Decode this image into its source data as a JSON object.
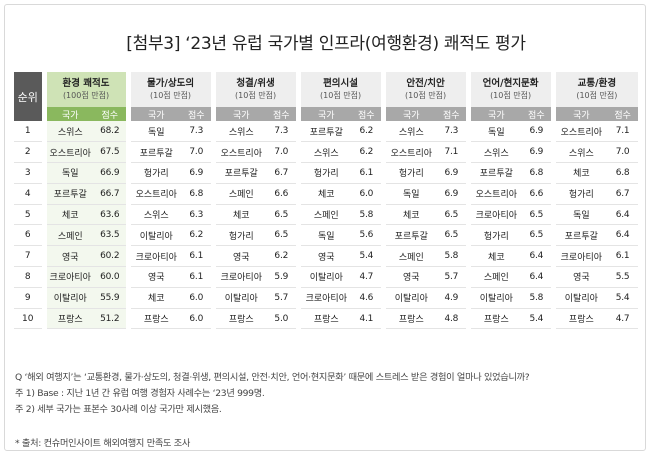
{
  "title": "[첨부3] ‘23년 유럽 국가별 인프라(여행환경) 쾌적도 평가",
  "table": {
    "rank_header": "순위",
    "country_label": "국가",
    "score_label": "점수",
    "categories": [
      {
        "name": "환경 쾌적도",
        "sub": "(100점 만점)"
      },
      {
        "name": "물가/상도의",
        "sub": "(10점 만점)"
      },
      {
        "name": "청결/위생",
        "sub": "(10점 만점)"
      },
      {
        "name": "편의시설",
        "sub": "(10점 만점)"
      },
      {
        "name": "안전/치안",
        "sub": "(10점 만점)"
      },
      {
        "name": "언어/현지문화",
        "sub": "(10점 만점)"
      },
      {
        "name": "교통/환경",
        "sub": "(10점 만점)"
      }
    ],
    "rows": [
      {
        "rank": "1",
        "cells": [
          [
            "스위스",
            "68.2"
          ],
          [
            "독일",
            "7.3"
          ],
          [
            "스위스",
            "7.3"
          ],
          [
            "포르투갈",
            "6.2"
          ],
          [
            "스위스",
            "7.3"
          ],
          [
            "독일",
            "6.9"
          ],
          [
            "오스트리아",
            "7.1"
          ]
        ]
      },
      {
        "rank": "2",
        "cells": [
          [
            "오스트리아",
            "67.5"
          ],
          [
            "포르투갈",
            "7.0"
          ],
          [
            "오스트리아",
            "7.0"
          ],
          [
            "스위스",
            "6.2"
          ],
          [
            "오스트리아",
            "7.1"
          ],
          [
            "스위스",
            "6.9"
          ],
          [
            "스위스",
            "7.0"
          ]
        ]
      },
      {
        "rank": "3",
        "cells": [
          [
            "독일",
            "66.9"
          ],
          [
            "헝가리",
            "6.9"
          ],
          [
            "포르투갈",
            "6.7"
          ],
          [
            "헝가리",
            "6.1"
          ],
          [
            "헝가리",
            "6.9"
          ],
          [
            "포르투갈",
            "6.8"
          ],
          [
            "체코",
            "6.8"
          ]
        ]
      },
      {
        "rank": "4",
        "cells": [
          [
            "포르투갈",
            "66.7"
          ],
          [
            "오스트리아",
            "6.8"
          ],
          [
            "스페인",
            "6.6"
          ],
          [
            "체코",
            "6.0"
          ],
          [
            "독일",
            "6.9"
          ],
          [
            "오스트리아",
            "6.6"
          ],
          [
            "헝가리",
            "6.7"
          ]
        ]
      },
      {
        "rank": "5",
        "cells": [
          [
            "체코",
            "63.6"
          ],
          [
            "스위스",
            "6.3"
          ],
          [
            "체코",
            "6.5"
          ],
          [
            "스페인",
            "5.8"
          ],
          [
            "체코",
            "6.5"
          ],
          [
            "크로아티아",
            "6.5"
          ],
          [
            "독일",
            "6.4"
          ]
        ]
      },
      {
        "rank": "6",
        "cells": [
          [
            "스페인",
            "63.5"
          ],
          [
            "이탈리아",
            "6.2"
          ],
          [
            "헝가리",
            "6.5"
          ],
          [
            "독일",
            "5.6"
          ],
          [
            "포르투갈",
            "6.5"
          ],
          [
            "헝가리",
            "6.5"
          ],
          [
            "포르투갈",
            "6.4"
          ]
        ]
      },
      {
        "rank": "7",
        "cells": [
          [
            "영국",
            "60.2"
          ],
          [
            "크로아티아",
            "6.1"
          ],
          [
            "영국",
            "6.2"
          ],
          [
            "영국",
            "5.4"
          ],
          [
            "스페인",
            "5.8"
          ],
          [
            "체코",
            "6.4"
          ],
          [
            "크로아티아",
            "6.1"
          ]
        ]
      },
      {
        "rank": "8",
        "cells": [
          [
            "크로아티아",
            "60.0"
          ],
          [
            "영국",
            "6.1"
          ],
          [
            "크로아티아",
            "5.9"
          ],
          [
            "이탈리아",
            "4.7"
          ],
          [
            "영국",
            "5.7"
          ],
          [
            "스페인",
            "6.4"
          ],
          [
            "영국",
            "5.5"
          ]
        ]
      },
      {
        "rank": "9",
        "cells": [
          [
            "이탈리아",
            "55.9"
          ],
          [
            "체코",
            "6.0"
          ],
          [
            "이탈리아",
            "5.7"
          ],
          [
            "크로아티아",
            "4.6"
          ],
          [
            "이탈리아",
            "4.9"
          ],
          [
            "이탈리아",
            "5.8"
          ],
          [
            "이탈리아",
            "5.4"
          ]
        ]
      },
      {
        "rank": "10",
        "cells": [
          [
            "프랑스",
            "51.2"
          ],
          [
            "프랑스",
            "6.0"
          ],
          [
            "프랑스",
            "5.0"
          ],
          [
            "프랑스",
            "4.1"
          ],
          [
            "프랑스",
            "4.8"
          ],
          [
            "프랑스",
            "5.4"
          ],
          [
            "프랑스",
            "4.7"
          ]
        ]
      }
    ]
  },
  "notes": [
    "Q ‘해외 여행지’는 ‘교통환경, 물가·상도의, 청결·위생, 편의시설, 안전·치안, 언어·현지문화’ 때문에 스트레스 받은 경험이 얼마나 있었습니까?",
    "주 1) Base : 지난 1년 간 유럽 여행 경험자 사례수는 ‘23년 999명.",
    "주 2) 세부 국가는 표본수 30사례 이상 국가만 제시했음."
  ],
  "source": "* 출처: 컨슈머인사이트 해외여행지 만족도 조사",
  "colors": {
    "highlight_header": "#cfe3b6",
    "highlight_subheader": "#8ab85e",
    "highlight_cell": "#f3f8ee",
    "rank_header_bg": "#5a5a5a"
  }
}
